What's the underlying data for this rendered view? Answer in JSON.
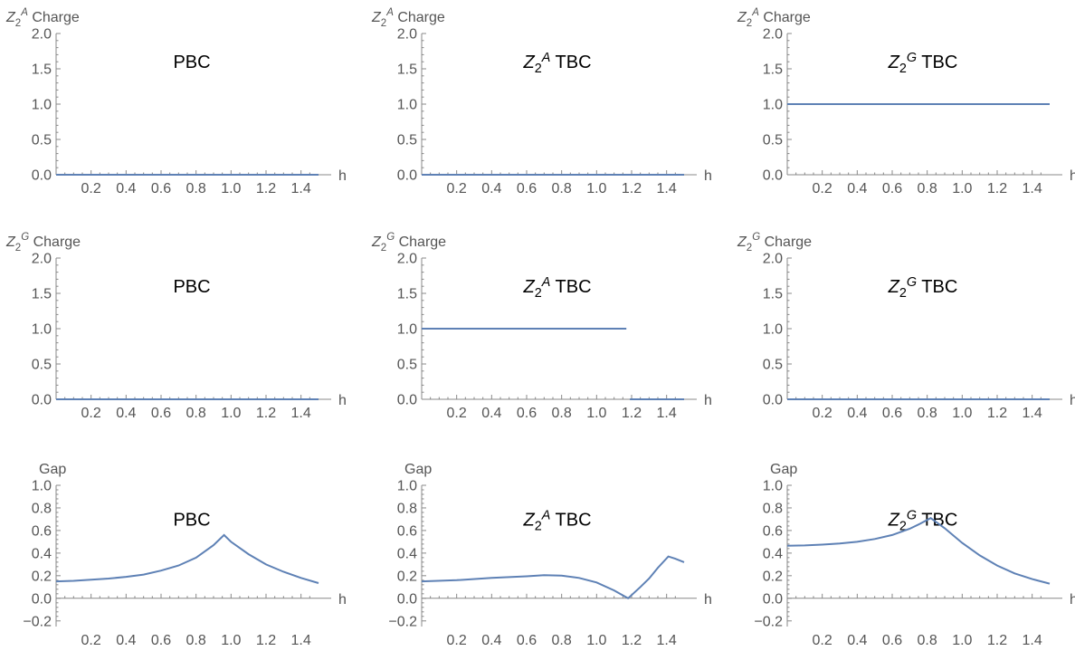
{
  "colors": {
    "series": "#5e81b5",
    "axis": "#888888",
    "tick_text": "#555555"
  },
  "chart_data": [
    {
      "type": "line",
      "ylabel": {
        "base": "Z",
        "sub": "2",
        "sup": "A",
        "rest": " Charge"
      },
      "xlabel": "h",
      "plot_label": {
        "text": "PBC"
      },
      "xlim": [
        0,
        1.5
      ],
      "ylim": [
        0,
        2.0
      ],
      "yticks": [
        "0.0",
        "0.5",
        "1.0",
        "1.5",
        "2.0"
      ],
      "xticks": [
        "0.2",
        "0.4",
        "0.6",
        "0.8",
        "1.0",
        "1.2",
        "1.4"
      ],
      "series": [
        {
          "x": [
            0,
            1.5
          ],
          "y": [
            0,
            0
          ]
        }
      ]
    },
    {
      "type": "line",
      "ylabel": {
        "base": "Z",
        "sub": "2",
        "sup": "A",
        "rest": " Charge"
      },
      "xlabel": "h",
      "plot_label": {
        "base": "Z",
        "sub": "2",
        "sup": "A",
        "rest": " TBC"
      },
      "xlim": [
        0,
        1.5
      ],
      "ylim": [
        0,
        2.0
      ],
      "yticks": [
        "0.0",
        "0.5",
        "1.0",
        "1.5",
        "2.0"
      ],
      "xticks": [
        "0.2",
        "0.4",
        "0.6",
        "0.8",
        "1.0",
        "1.2",
        "1.4"
      ],
      "series": [
        {
          "x": [
            0,
            1.5
          ],
          "y": [
            0,
            0
          ]
        }
      ]
    },
    {
      "type": "line",
      "ylabel": {
        "base": "Z",
        "sub": "2",
        "sup": "A",
        "rest": " Charge"
      },
      "xlabel": "h",
      "plot_label": {
        "base": "Z",
        "sub": "2",
        "sup": "G",
        "rest": " TBC"
      },
      "xlim": [
        0,
        1.5
      ],
      "ylim": [
        0,
        2.0
      ],
      "yticks": [
        "0.0",
        "0.5",
        "1.0",
        "1.5",
        "2.0"
      ],
      "xticks": [
        "0.2",
        "0.4",
        "0.6",
        "0.8",
        "1.0",
        "1.2",
        "1.4"
      ],
      "series": [
        {
          "x": [
            0,
            1.5
          ],
          "y": [
            1,
            1
          ]
        }
      ]
    },
    {
      "type": "line",
      "ylabel": {
        "base": "Z",
        "sub": "2",
        "sup": "G",
        "rest": " Charge"
      },
      "xlabel": "h",
      "plot_label": {
        "text": "PBC"
      },
      "xlim": [
        0,
        1.5
      ],
      "ylim": [
        0,
        2.0
      ],
      "yticks": [
        "0.0",
        "0.5",
        "1.0",
        "1.5",
        "2.0"
      ],
      "xticks": [
        "0.2",
        "0.4",
        "0.6",
        "0.8",
        "1.0",
        "1.2",
        "1.4"
      ],
      "series": [
        {
          "x": [
            0,
            1.5
          ],
          "y": [
            0,
            0
          ]
        }
      ]
    },
    {
      "type": "line",
      "ylabel": {
        "base": "Z",
        "sub": "2",
        "sup": "G",
        "rest": " Charge"
      },
      "xlabel": "h",
      "plot_label": {
        "base": "Z",
        "sub": "2",
        "sup": "A",
        "rest": " TBC"
      },
      "xlim": [
        0,
        1.5
      ],
      "ylim": [
        0,
        2.0
      ],
      "yticks": [
        "0.0",
        "0.5",
        "1.0",
        "1.5",
        "2.0"
      ],
      "xticks": [
        "0.2",
        "0.4",
        "0.6",
        "0.8",
        "1.0",
        "1.2",
        "1.4"
      ],
      "series": [
        {
          "x": [
            0,
            1.17
          ],
          "y": [
            1,
            1
          ]
        },
        {
          "x": [
            1.19,
            1.5
          ],
          "y": [
            0,
            0
          ]
        }
      ]
    },
    {
      "type": "line",
      "ylabel": {
        "base": "Z",
        "sub": "2",
        "sup": "G",
        "rest": " Charge"
      },
      "xlabel": "h",
      "plot_label": {
        "base": "Z",
        "sub": "2",
        "sup": "G",
        "rest": " TBC"
      },
      "xlim": [
        0,
        1.5
      ],
      "ylim": [
        0,
        2.0
      ],
      "yticks": [
        "0.0",
        "0.5",
        "1.0",
        "1.5",
        "2.0"
      ],
      "xticks": [
        "0.2",
        "0.4",
        "0.6",
        "0.8",
        "1.0",
        "1.2",
        "1.4"
      ],
      "series": [
        {
          "x": [
            0,
            1.5
          ],
          "y": [
            0,
            0
          ]
        }
      ]
    },
    {
      "type": "line",
      "ylabel": {
        "text": "Gap"
      },
      "xlabel": "h",
      "plot_label": {
        "text": "PBC"
      },
      "xlim": [
        0,
        1.5
      ],
      "ylim": [
        -0.25,
        1.0
      ],
      "yticks": [
        "-0.2",
        "0.0",
        "0.2",
        "0.4",
        "0.6",
        "0.8",
        "1.0"
      ],
      "xticks": [
        "0.2",
        "0.4",
        "0.6",
        "0.8",
        "1.0",
        "1.2",
        "1.4"
      ],
      "series": [
        {
          "x": [
            0.0,
            0.1,
            0.2,
            0.3,
            0.4,
            0.5,
            0.6,
            0.7,
            0.8,
            0.9,
            0.96,
            1.0,
            1.1,
            1.2,
            1.3,
            1.4,
            1.5
          ],
          "y": [
            0.15,
            0.155,
            0.165,
            0.175,
            0.19,
            0.21,
            0.245,
            0.29,
            0.36,
            0.47,
            0.56,
            0.5,
            0.39,
            0.3,
            0.235,
            0.18,
            0.135
          ]
        }
      ]
    },
    {
      "type": "line",
      "ylabel": {
        "text": "Gap"
      },
      "xlabel": "h",
      "plot_label": {
        "base": "Z",
        "sub": "2",
        "sup": "A",
        "rest": " TBC"
      },
      "xlim": [
        0,
        1.5
      ],
      "ylim": [
        -0.25,
        1.0
      ],
      "yticks": [
        "-0.2",
        "0.0",
        "0.2",
        "0.4",
        "0.6",
        "0.8",
        "1.0"
      ],
      "xticks": [
        "0.2",
        "0.4",
        "0.6",
        "0.8",
        "1.0",
        "1.2",
        "1.4"
      ],
      "series": [
        {
          "x": [
            0.0,
            0.2,
            0.4,
            0.6,
            0.7,
            0.8,
            0.9,
            1.0,
            1.1,
            1.18,
            1.25,
            1.3,
            1.35,
            1.41,
            1.45,
            1.5
          ],
          "y": [
            0.15,
            0.16,
            0.18,
            0.195,
            0.205,
            0.2,
            0.18,
            0.14,
            0.07,
            0.0,
            0.1,
            0.175,
            0.27,
            0.37,
            0.35,
            0.32
          ]
        }
      ]
    },
    {
      "type": "line",
      "ylabel": {
        "text": "Gap"
      },
      "xlabel": "h",
      "plot_label": {
        "base": "Z",
        "sub": "2",
        "sup": "G",
        "rest": " TBC"
      },
      "xlim": [
        0,
        1.5
      ],
      "ylim": [
        -0.25,
        1.0
      ],
      "yticks": [
        "-0.2",
        "0.0",
        "0.2",
        "0.4",
        "0.6",
        "0.8",
        "1.0"
      ],
      "xticks": [
        "0.2",
        "0.4",
        "0.6",
        "0.8",
        "1.0",
        "1.2",
        "1.4"
      ],
      "series": [
        {
          "x": [
            0.0,
            0.1,
            0.2,
            0.3,
            0.4,
            0.5,
            0.6,
            0.7,
            0.76,
            0.82,
            0.9,
            1.0,
            1.1,
            1.2,
            1.3,
            1.4,
            1.5
          ],
          "y": [
            0.465,
            0.468,
            0.475,
            0.485,
            0.5,
            0.525,
            0.56,
            0.615,
            0.66,
            0.71,
            0.62,
            0.49,
            0.38,
            0.29,
            0.22,
            0.17,
            0.13
          ]
        }
      ]
    }
  ]
}
